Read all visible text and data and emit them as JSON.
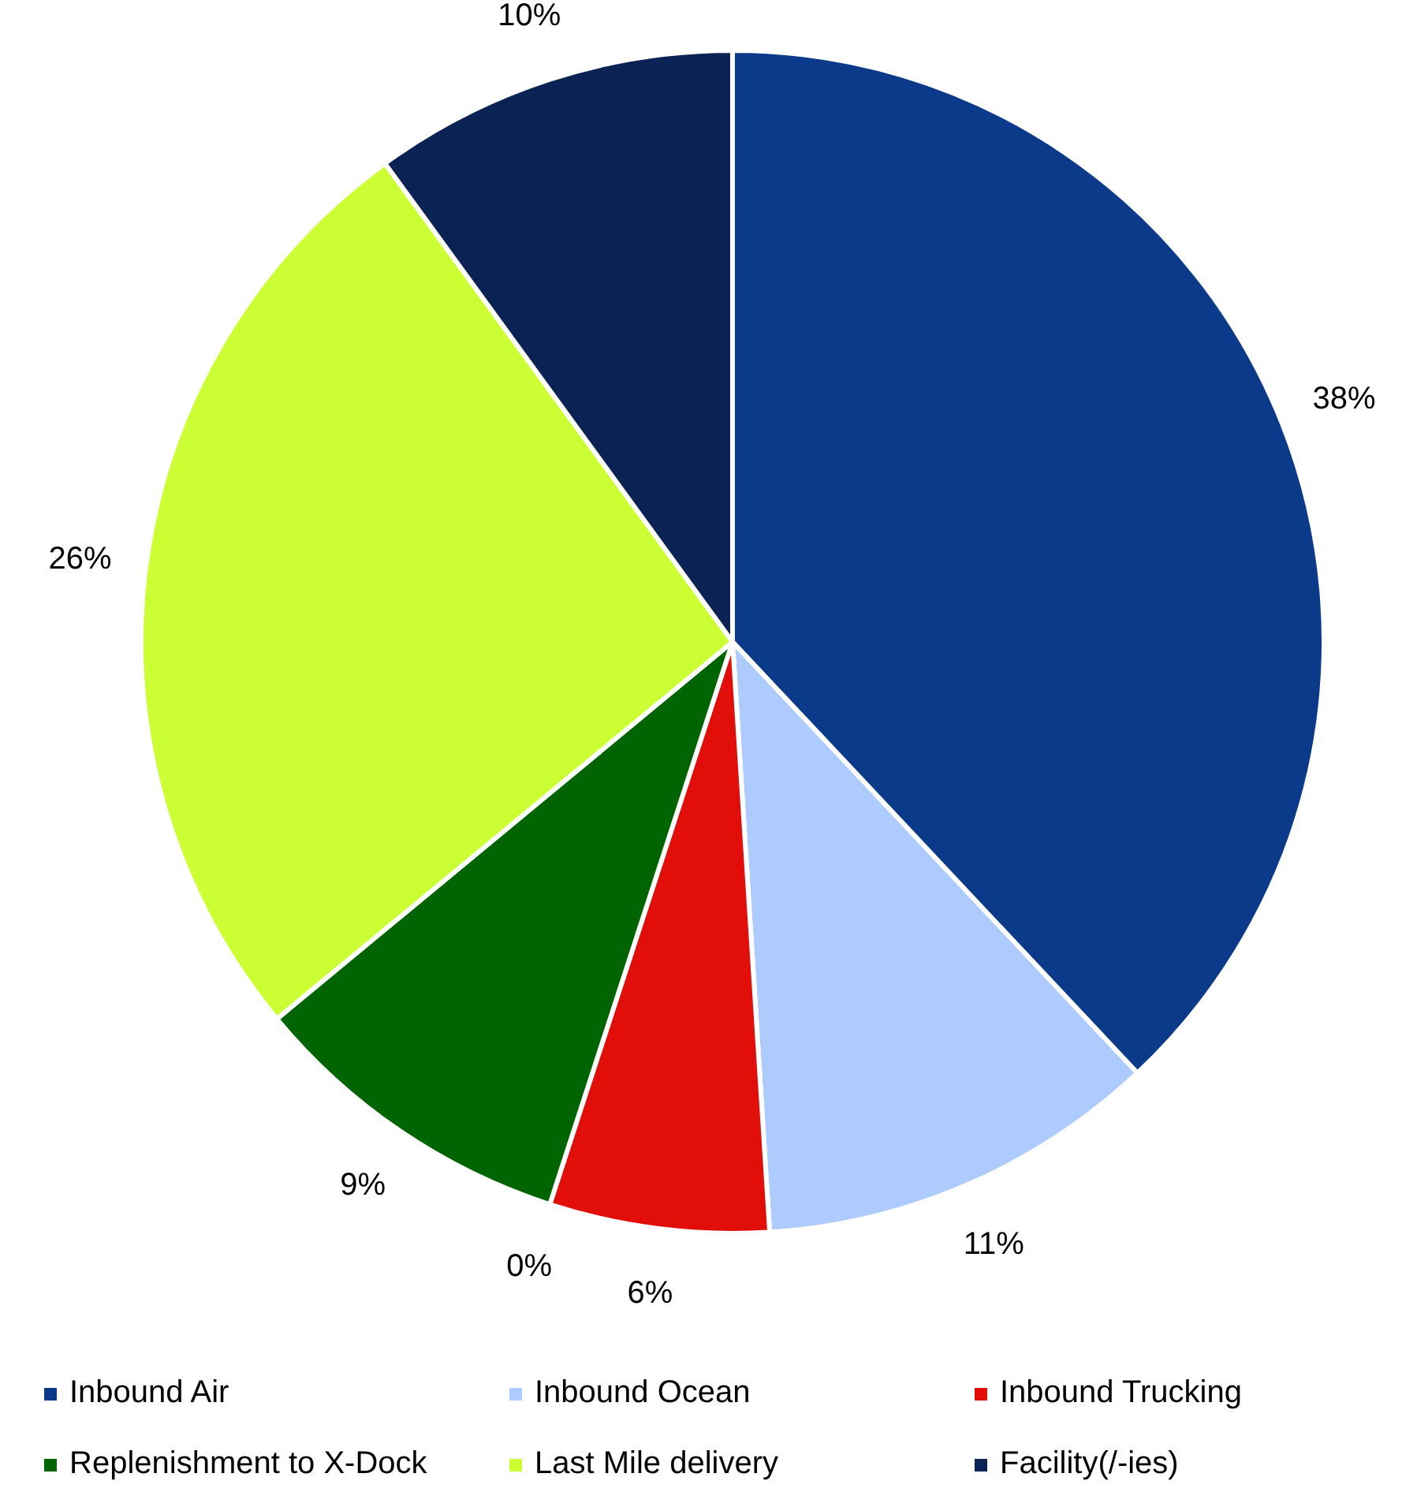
{
  "chart_data": {
    "type": "pie",
    "categories": [
      "Inbound Air",
      "Inbound Ocean",
      "Inbound Trucking",
      null,
      "Replenishment to X-Dock",
      "Last Mile delivery",
      "Facility(/-ies)"
    ],
    "values": [
      38,
      11,
      6,
      0,
      9,
      26,
      10
    ],
    "colors": [
      "#0c3a8a",
      "#adcbff",
      "#e20e0a",
      "#ff9900",
      "#006400",
      "#ccff33",
      "#0a2354"
    ],
    "value_labels": [
      "38%",
      "11%",
      "6%",
      "0%",
      "9%",
      "26%",
      "10%"
    ],
    "legend": "bottom"
  }
}
